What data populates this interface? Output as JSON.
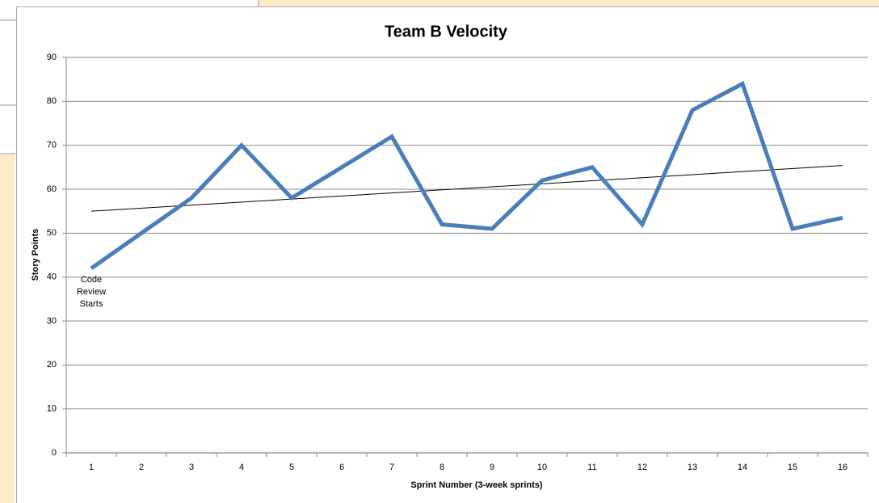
{
  "chart_data": {
    "type": "line",
    "title": "Team B Velocity",
    "x_label": "Sprint Number (3-week sprints)",
    "y_label": "Story Points",
    "x": [
      1,
      2,
      3,
      4,
      5,
      6,
      7,
      8,
      9,
      10,
      11,
      12,
      13,
      14,
      15,
      16
    ],
    "xlim": [
      0.5,
      16.5
    ],
    "xticks": [
      1,
      2,
      3,
      4,
      5,
      6,
      7,
      8,
      9,
      10,
      11,
      12,
      13,
      14,
      15,
      16
    ],
    "series": [
      {
        "color": "#4a7ebb",
        "values": [
          42,
          50,
          58,
          70,
          58,
          65,
          72,
          52,
          51,
          62,
          65,
          52,
          78,
          84,
          51,
          53.5
        ]
      }
    ],
    "trendline": {
      "x": [
        1,
        16
      ],
      "values": [
        55,
        65.4
      ],
      "color": "#000000"
    },
    "annotation": {
      "text": "Code Review Starts",
      "x": 1,
      "y": 40
    },
    "ylim": [
      0,
      90
    ],
    "yticks": [
      0,
      10,
      20,
      30,
      40,
      50,
      60,
      70,
      80,
      90
    ],
    "grid": true
  }
}
